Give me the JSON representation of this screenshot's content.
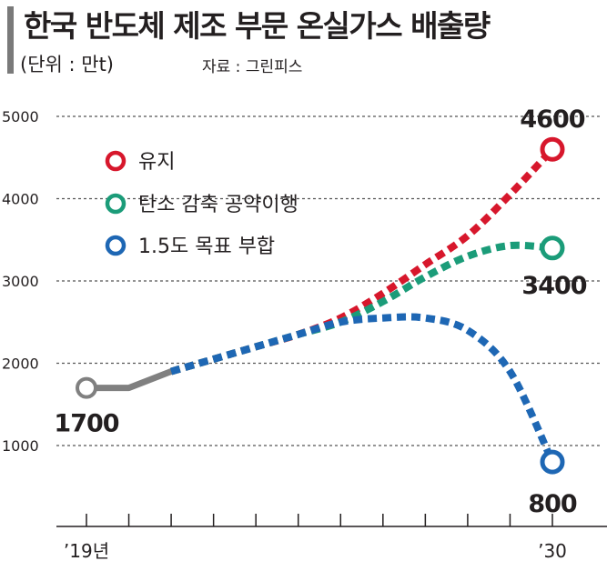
{
  "header": {
    "title": "한국 반도체 제조 부문 온실가스 배출량",
    "unit": "(단위 : 만t)",
    "source": "자료 : 그린피스"
  },
  "colors": {
    "history": "#808080",
    "maintain": "#d7172c",
    "pledge": "#1b9c79",
    "target": "#1e67b4",
    "grid": "#555555",
    "text": "#231f20"
  },
  "chart_data": {
    "type": "line",
    "title": "한국 반도체 제조 부문 온실가스 배출량",
    "ylabel": "(단위 : 만t)",
    "ylim": [
      0,
      5500
    ],
    "yticks": [
      1000,
      2000,
      3000,
      4000,
      5000
    ],
    "xlim": [
      2019,
      2030
    ],
    "x_tick_labels": [
      {
        "x": 2019,
        "label": "’19년"
      },
      {
        "x": 2030,
        "label": "’30"
      }
    ],
    "grid": true,
    "legend_position": "top-left",
    "history": {
      "x": [
        2019,
        2020,
        2021
      ],
      "values": [
        1700,
        1700,
        1900
      ],
      "style": "solid"
    },
    "series": [
      {
        "name": "유지",
        "color": "#d7172c",
        "x": [
          2021,
          2022,
          2023,
          2024,
          2025,
          2026,
          2027,
          2028,
          2029,
          2030
        ],
        "values": [
          1900,
          2050,
          2200,
          2350,
          2550,
          2850,
          3200,
          3550,
          4050,
          4600
        ]
      },
      {
        "name": "탄소 감축 공약이행",
        "color": "#1b9c79",
        "x": [
          2021,
          2022,
          2023,
          2024,
          2025,
          2026,
          2027,
          2028,
          2029,
          2030
        ],
        "values": [
          1900,
          2050,
          2200,
          2350,
          2500,
          2750,
          3050,
          3300,
          3430,
          3400
        ]
      },
      {
        "name": "1.5도 목표 부합",
        "color": "#1e67b4",
        "x": [
          2021,
          2022,
          2023,
          2024,
          2025,
          2026,
          2027,
          2028,
          2029,
          2030
        ],
        "values": [
          1900,
          2050,
          2200,
          2350,
          2500,
          2550,
          2550,
          2400,
          1900,
          800
        ]
      }
    ],
    "annotations": [
      {
        "x": 2019,
        "value": 1700,
        "label": "1700"
      },
      {
        "x": 2030,
        "value": 4600,
        "label": "4600"
      },
      {
        "x": 2030,
        "value": 3400,
        "label": "3400"
      },
      {
        "x": 2030,
        "value": 800,
        "label": "800"
      }
    ]
  }
}
